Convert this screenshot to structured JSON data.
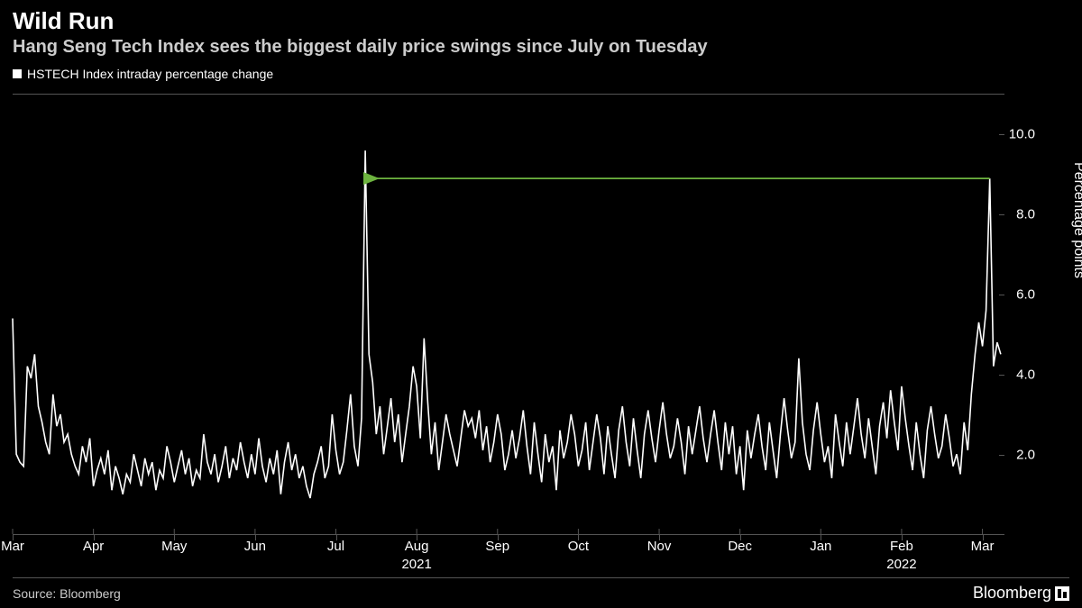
{
  "header": {
    "title": "Wild Run",
    "subtitle": "Hang Seng Tech Index sees the biggest daily price swings since July on Tuesday"
  },
  "legend": {
    "label": "HSTECH Index intraday percentage change",
    "marker_color": "#ffffff"
  },
  "chart": {
    "type": "line",
    "line_color": "#ffffff",
    "line_width": 1.6,
    "background_color": "#000000",
    "grid_color": "#555555",
    "annotation_arrow_color": "#6db33f",
    "ylabel": "Percentage points",
    "ylim": [
      0,
      11
    ],
    "yticks": [
      2.0,
      4.0,
      6.0,
      8.0,
      10.0
    ],
    "ytick_labels": [
      "2.0",
      "4.0",
      "6.0",
      "8.0",
      "10.0"
    ],
    "xlim": [
      0,
      270
    ],
    "xticks": [
      0,
      22,
      44,
      66,
      88,
      110,
      132,
      154,
      176,
      198,
      220,
      242,
      264
    ],
    "xtick_labels": [
      "Mar",
      "Apr",
      "May",
      "Jun",
      "Jul",
      "Aug",
      "Sep",
      "Oct",
      "Nov",
      "Dec",
      "Jan",
      "Feb",
      "Mar"
    ],
    "year_labels": [
      {
        "x": 110,
        "text": "2021"
      },
      {
        "x": 242,
        "text": "2022"
      }
    ],
    "annotation": {
      "from_x": 266,
      "from_y": 8.9,
      "to_x": 99,
      "to_y": 8.9
    },
    "values": [
      5.4,
      2.0,
      1.8,
      1.7,
      4.2,
      3.9,
      4.5,
      3.2,
      2.8,
      2.3,
      2.0,
      3.5,
      2.7,
      3.0,
      2.3,
      2.5,
      2.0,
      1.7,
      1.5,
      2.2,
      1.8,
      2.4,
      1.2,
      1.6,
      1.9,
      1.5,
      2.1,
      1.1,
      1.7,
      1.4,
      1.0,
      1.5,
      1.3,
      2.0,
      1.6,
      1.2,
      1.9,
      1.5,
      1.8,
      1.1,
      1.6,
      1.4,
      2.2,
      1.8,
      1.3,
      1.7,
      2.1,
      1.5,
      1.9,
      1.2,
      1.6,
      1.4,
      2.5,
      1.8,
      1.5,
      2.0,
      1.3,
      1.7,
      2.2,
      1.4,
      1.9,
      1.6,
      2.3,
      1.8,
      1.4,
      2.0,
      1.5,
      2.4,
      1.7,
      1.3,
      1.9,
      1.5,
      2.1,
      1.0,
      1.8,
      2.3,
      1.6,
      2.0,
      1.4,
      1.7,
      1.2,
      0.9,
      1.5,
      1.8,
      2.2,
      1.4,
      1.7,
      3.0,
      2.1,
      1.5,
      1.8,
      2.6,
      3.5,
      2.2,
      1.7,
      2.9,
      9.6,
      4.5,
      3.8,
      2.5,
      3.2,
      2.0,
      2.7,
      3.4,
      2.3,
      3.0,
      1.8,
      2.5,
      3.2,
      4.2,
      3.7,
      2.4,
      4.9,
      3.3,
      2.0,
      2.8,
      1.6,
      2.3,
      3.0,
      2.5,
      2.1,
      1.7,
      2.4,
      3.1,
      2.7,
      2.9,
      2.4,
      3.1,
      2.1,
      2.7,
      1.8,
      2.3,
      3.0,
      2.5,
      1.6,
      2.0,
      2.6,
      1.9,
      2.4,
      3.1,
      2.2,
      1.5,
      2.8,
      2.0,
      1.3,
      2.5,
      1.8,
      2.2,
      1.1,
      2.6,
      1.9,
      2.3,
      3.0,
      2.5,
      1.7,
      2.1,
      2.8,
      1.6,
      2.3,
      3.0,
      2.4,
      1.5,
      2.7,
      2.0,
      1.4,
      2.6,
      3.2,
      2.3,
      1.7,
      2.9,
      2.1,
      1.4,
      2.5,
      3.1,
      2.4,
      1.8,
      2.6,
      3.3,
      2.5,
      1.9,
      2.2,
      2.9,
      2.3,
      1.5,
      2.7,
      2.0,
      2.6,
      3.2,
      2.4,
      1.8,
      2.5,
      3.1,
      2.3,
      1.6,
      2.8,
      2.0,
      2.7,
      1.5,
      2.2,
      1.1,
      2.6,
      1.9,
      2.5,
      3.0,
      2.2,
      1.6,
      2.8,
      2.1,
      1.4,
      2.5,
      3.4,
      2.6,
      1.9,
      2.3,
      4.4,
      2.8,
      2.0,
      1.6,
      2.6,
      3.3,
      2.5,
      1.8,
      2.2,
      1.4,
      3.0,
      2.3,
      1.7,
      2.8,
      2.0,
      2.7,
      3.4,
      2.5,
      1.9,
      2.9,
      2.2,
      1.5,
      2.7,
      3.3,
      2.4,
      3.6,
      2.8,
      2.1,
      3.7,
      2.9,
      2.2,
      1.6,
      2.8,
      2.0,
      1.4,
      2.6,
      3.2,
      2.5,
      1.9,
      2.2,
      3.0,
      2.4,
      1.7,
      2.0,
      1.5,
      2.8,
      2.1,
      3.5,
      4.5,
      5.3,
      4.7,
      5.6,
      8.9,
      4.2,
      4.8,
      4.5
    ]
  },
  "footer": {
    "source": "Source: Bloomberg",
    "brand": "Bloomberg"
  }
}
